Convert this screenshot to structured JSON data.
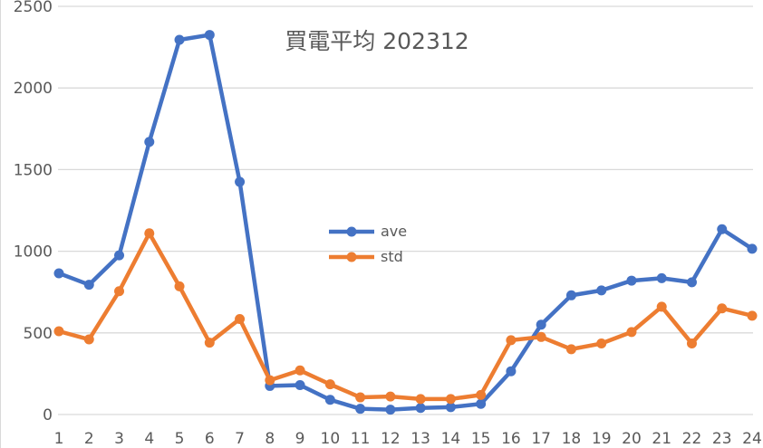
{
  "chart_data": {
    "type": "line",
    "title": "買電平均 202312",
    "xlabel": "",
    "ylabel": "",
    "categories": [
      "1",
      "2",
      "3",
      "4",
      "5",
      "6",
      "7",
      "8",
      "9",
      "10",
      "11",
      "12",
      "13",
      "14",
      "15",
      "16",
      "17",
      "18",
      "19",
      "20",
      "21",
      "22",
      "23",
      "24"
    ],
    "series": [
      {
        "name": "ave",
        "color": "#4472C4",
        "values": [
          865,
          795,
          975,
          1670,
          2295,
          2325,
          1425,
          175,
          180,
          90,
          35,
          30,
          40,
          45,
          65,
          265,
          550,
          730,
          760,
          820,
          835,
          810,
          1135,
          1015
        ]
      },
      {
        "name": "std",
        "color": "#ED7D31",
        "values": [
          510,
          460,
          755,
          1110,
          785,
          440,
          585,
          210,
          270,
          185,
          105,
          110,
          95,
          95,
          120,
          455,
          475,
          400,
          435,
          505,
          660,
          435,
          650,
          605
        ]
      }
    ],
    "ylim": [
      0,
      2500
    ],
    "yticks": [
      0,
      500,
      1000,
      1500,
      2000,
      2500
    ],
    "grid": true,
    "legend_position": "inside-center"
  }
}
